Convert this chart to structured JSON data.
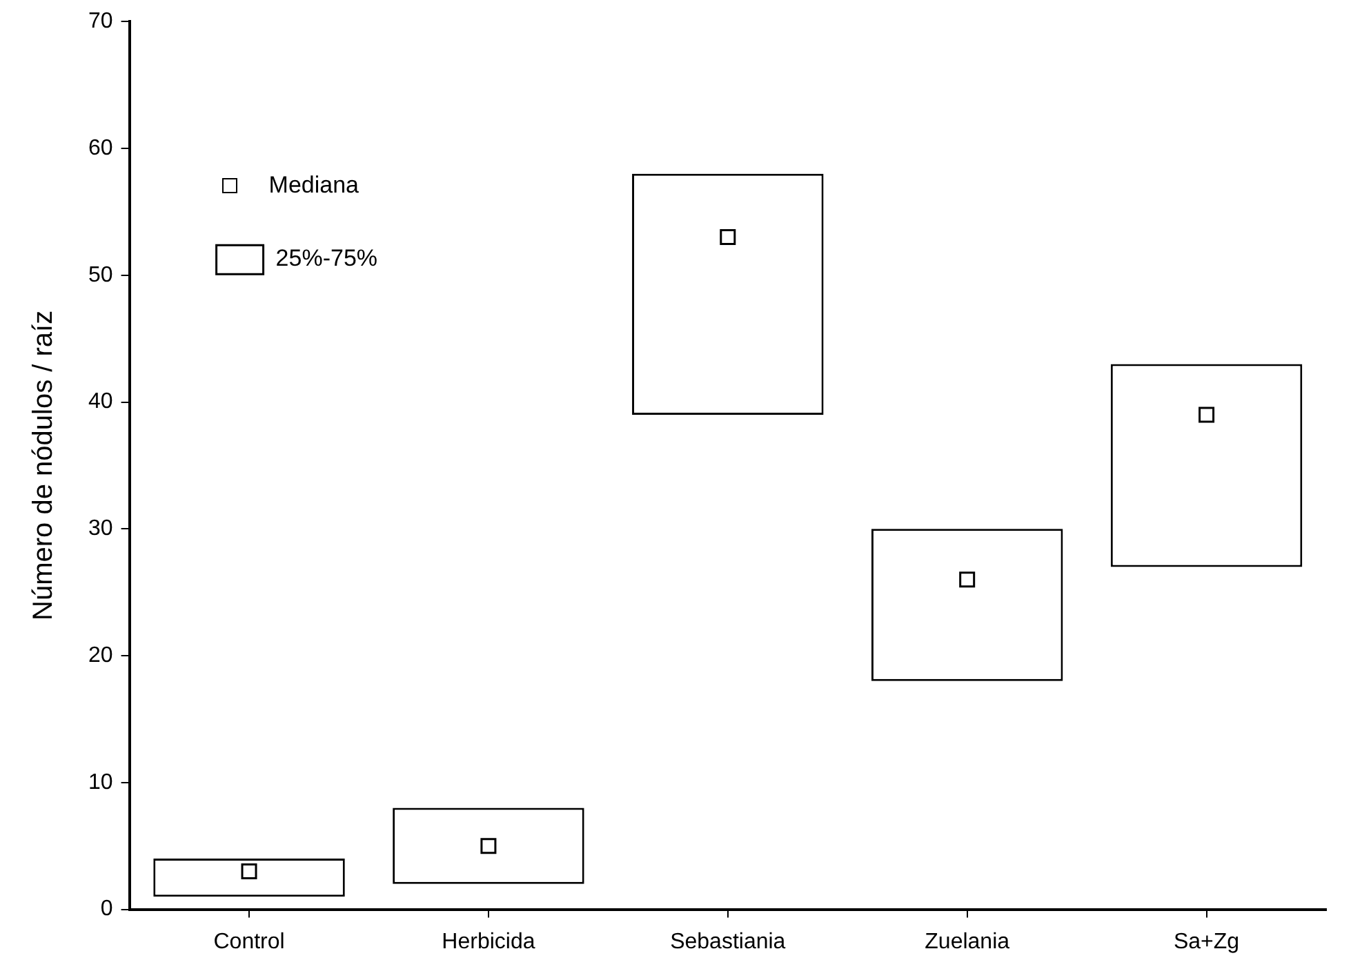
{
  "chart_data": {
    "type": "box",
    "ylabel": "Número de nódulos / raíz",
    "categories": [
      "Control",
      "Herbicida",
      "Sebastiania",
      "Zuelania",
      "Sa+Zg"
    ],
    "ylim": [
      0,
      70
    ],
    "yticks": [
      0,
      10,
      20,
      30,
      40,
      50,
      60,
      70
    ],
    "grid": false,
    "legend": "top left",
    "marker": "square",
    "annotations": [
      "Mediana"
    ],
    "series": [
      {
        "name": "25%-75%",
        "type": "box",
        "color": "#000000",
        "boxes": [
          {
            "low": 1,
            "q1": 1,
            "median": 3,
            "q3": 4,
            "high": 4
          },
          {
            "low": 2,
            "q1": 2,
            "median": 5,
            "q3": 8,
            "high": 8
          },
          {
            "low": 39,
            "q1": 39,
            "median": 53,
            "q3": 58,
            "high": 58
          },
          {
            "low": 18,
            "q1": 18,
            "median": 26,
            "q3": 30,
            "high": 30
          },
          {
            "low": 27,
            "q1": 27,
            "median": 39,
            "q3": 43,
            "high": 43
          }
        ]
      }
    ]
  }
}
